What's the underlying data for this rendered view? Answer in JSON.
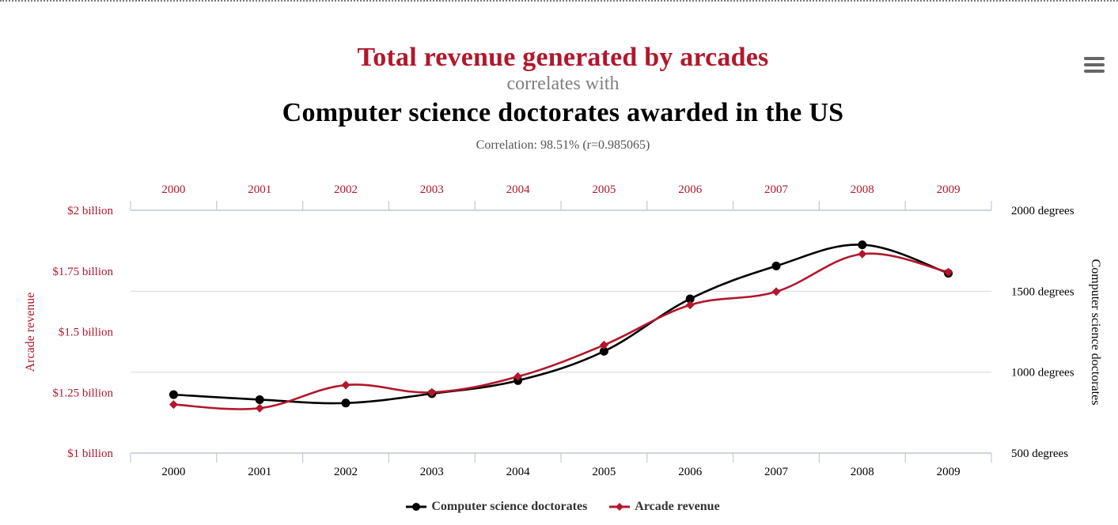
{
  "header": {
    "title_top": "Total revenue generated by arcades",
    "title_mid": "correlates with",
    "title_bottom": "Computer science doctorates awarded in the US",
    "correlation": "Correlation: 98.51% (r=0.985065)"
  },
  "menu": {
    "icon": "hamburger-menu-icon"
  },
  "colors": {
    "arcade": "#b2172b",
    "doctorates": "#000000",
    "grid": "#d9dde3"
  },
  "chart_data": {
    "type": "line",
    "x": [
      "2000",
      "2001",
      "2002",
      "2003",
      "2004",
      "2005",
      "2006",
      "2007",
      "2008",
      "2009"
    ],
    "series": [
      {
        "name": "Computer science doctorates",
        "axis": "right",
        "values": [
          861,
          830,
          809,
          867,
          948,
          1129,
          1453,
          1656,
          1787,
          1611
        ]
      },
      {
        "name": "Arcade revenue",
        "axis": "left",
        "values": [
          1.2,
          1.185,
          1.28,
          1.25,
          1.315,
          1.445,
          1.61,
          1.665,
          1.82,
          1.745
        ]
      }
    ],
    "left_axis": {
      "label": "Arcade revenue",
      "range": [
        1,
        2
      ],
      "ticks": [
        1,
        1.25,
        1.5,
        1.75,
        2
      ],
      "tick_labels": [
        "$1 billion",
        "$1.25 billion",
        "$1.5 billion",
        "$1.75 billion",
        "$2 billion"
      ]
    },
    "right_axis": {
      "label": "Computer science doctorates",
      "range": [
        500,
        2000
      ],
      "ticks": [
        500,
        1000,
        1500,
        2000
      ],
      "tick_labels": [
        "500 degrees",
        "1000 degrees",
        "1500 degrees",
        "2000 degrees"
      ]
    },
    "grid": true,
    "legend_position": "bottom-center"
  }
}
